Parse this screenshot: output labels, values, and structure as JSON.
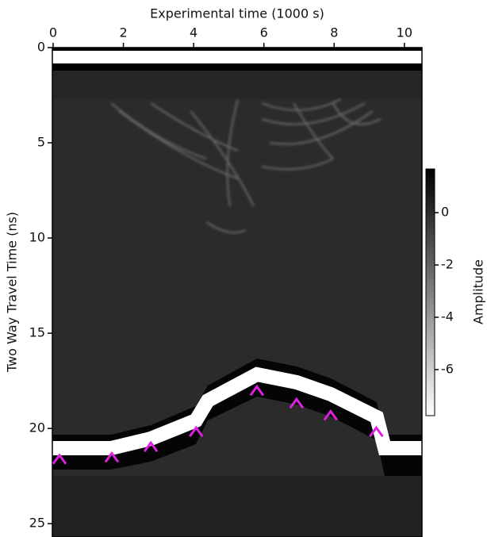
{
  "chart_data": {
    "type": "radargram",
    "xlabel": "Experimental time (1000 s)",
    "ylabel": "Two Way Travel Time (ns)",
    "xlim": [
      0,
      10.5
    ],
    "xticks": [
      0,
      2,
      4,
      6,
      8,
      10
    ],
    "ylim": [
      0,
      25.7
    ],
    "yticks": [
      0,
      5,
      10,
      15,
      20,
      25
    ],
    "y_inverted": true,
    "markers": {
      "color": "#e020e0",
      "x": [
        0.18,
        1.67,
        2.78,
        4.07,
        5.8,
        6.93,
        7.9,
        9.2
      ],
      "y": [
        21.9,
        21.8,
        21.25,
        20.46,
        18.3,
        18.96,
        19.6,
        20.46
      ]
    },
    "colorbar": {
      "label": "Amplitude",
      "clim": [
        -7.76,
        1.67
      ],
      "ticks": [
        0,
        -2,
        -4,
        -6
      ],
      "low_color": "#ffffff",
      "high_color": "#000000"
    }
  }
}
